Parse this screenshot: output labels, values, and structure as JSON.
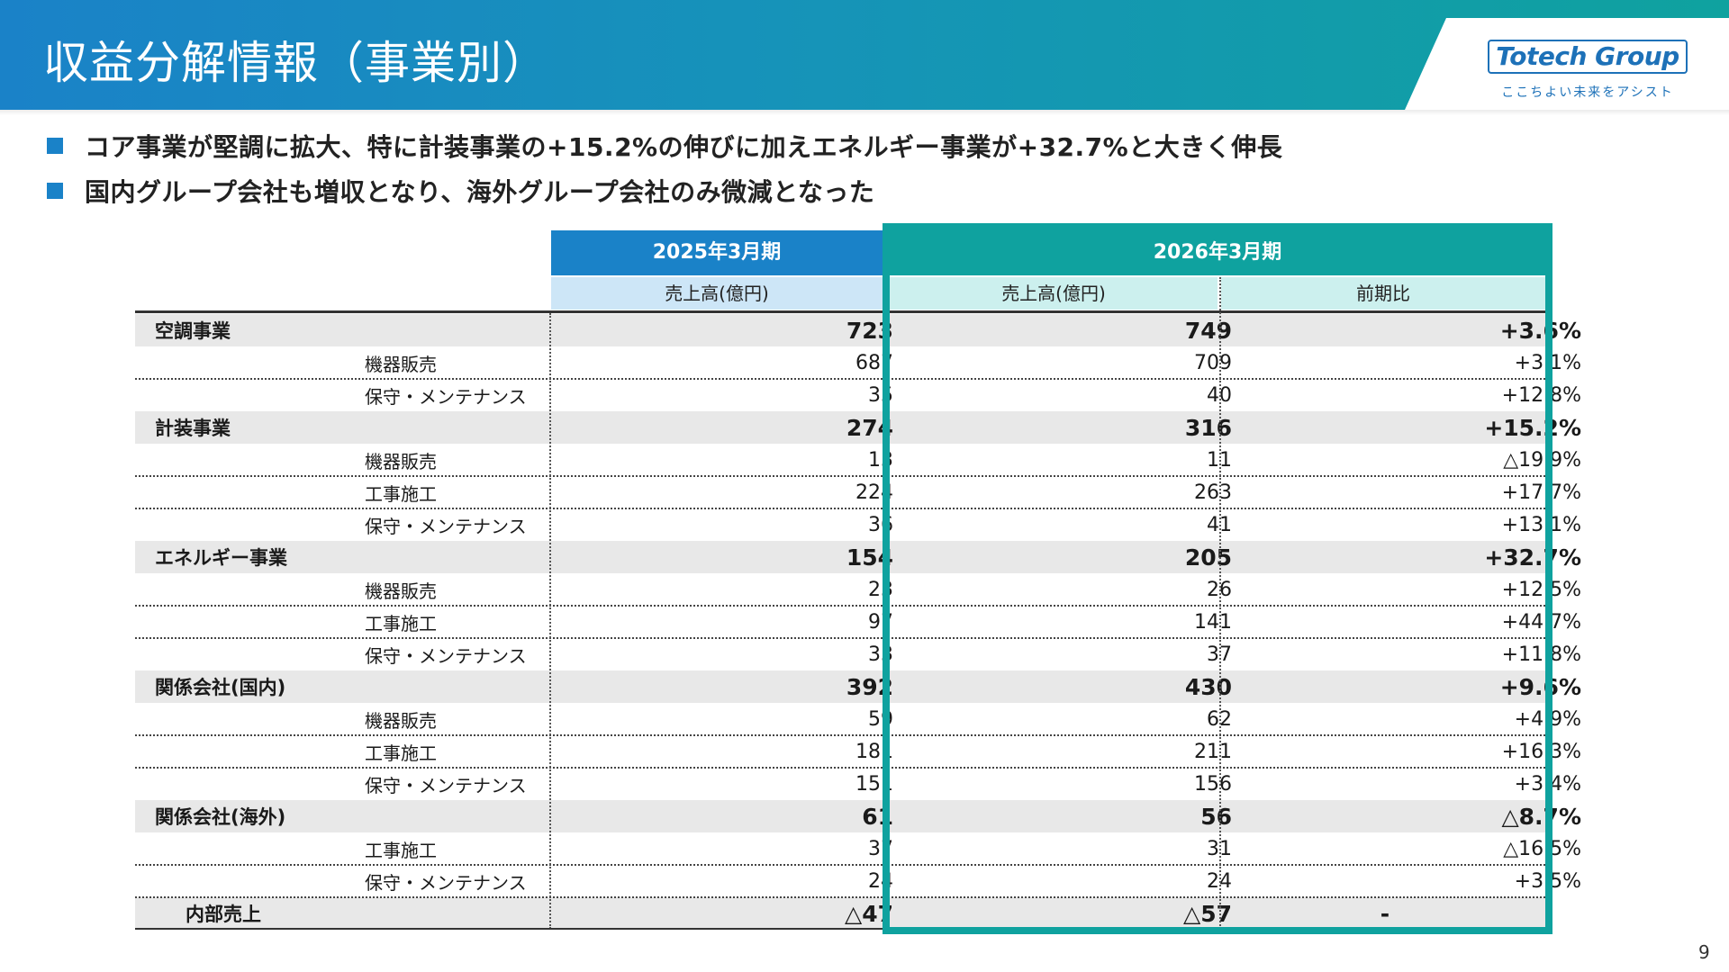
{
  "header": {
    "title": "収益分解情報（事業別）",
    "logo_text": "Totech Group",
    "logo_tagline": "ここちよい未来をアシスト"
  },
  "bullets": [
    "コア事業が堅調に拡大、特に計装事業の+15.2%の伸びに加えエネルギー事業が+32.7%と大きく伸長",
    "国内グループ会社も増収となり、海外グループ会社のみ微減となった"
  ],
  "table": {
    "period_prev": "2025年3月期",
    "period_curr": "2026年3月期",
    "col_sales_prev": "売上高(億円)",
    "col_sales_curr": "売上高(億円)",
    "col_yoy": "前期比",
    "rows": [
      {
        "label": "空調事業",
        "prev": "723",
        "curr": "749",
        "yoy": "+3.6%"
      },
      {
        "label": "機器販売",
        "prev": "687",
        "curr": "709",
        "yoy": "+3.1%"
      },
      {
        "label": "保守・メンテナンス",
        "prev": "35",
        "curr": "40",
        "yoy": "+12.8%"
      },
      {
        "label": "計装事業",
        "prev": "274",
        "curr": "316",
        "yoy": "+15.2%"
      },
      {
        "label": "機器販売",
        "prev": "13",
        "curr": "11",
        "yoy": "△19.9%"
      },
      {
        "label": "工事施工",
        "prev": "224",
        "curr": "263",
        "yoy": "+17.7%"
      },
      {
        "label": "保守・メンテナンス",
        "prev": "36",
        "curr": "41",
        "yoy": "+13.1%"
      },
      {
        "label": "エネルギー事業",
        "prev": "154",
        "curr": "205",
        "yoy": "+32.7%"
      },
      {
        "label": "機器販売",
        "prev": "23",
        "curr": "26",
        "yoy": "+12.5%"
      },
      {
        "label": "工事施工",
        "prev": "97",
        "curr": "141",
        "yoy": "+44.7%"
      },
      {
        "label": "保守・メンテナンス",
        "prev": "33",
        "curr": "37",
        "yoy": "+11.8%"
      },
      {
        "label": "関係会社(国内)",
        "prev": "392",
        "curr": "430",
        "yoy": "+9.6%"
      },
      {
        "label": "機器販売",
        "prev": "59",
        "curr": "62",
        "yoy": "+4.9%"
      },
      {
        "label": "工事施工",
        "prev": "181",
        "curr": "211",
        "yoy": "+16.3%"
      },
      {
        "label": "保守・メンテナンス",
        "prev": "151",
        "curr": "156",
        "yoy": "+3.4%"
      },
      {
        "label": "関係会社(海外)",
        "prev": "61",
        "curr": "56",
        "yoy": "△8.7%"
      },
      {
        "label": "工事施工",
        "prev": "37",
        "curr": "31",
        "yoy": "△16.5%"
      },
      {
        "label": "保守・メンテナンス",
        "prev": "24",
        "curr": "24",
        "yoy": "+3.5%"
      },
      {
        "label": "内部売上",
        "prev": "△47",
        "curr": "△57",
        "yoy": "-"
      }
    ]
  },
  "colors": {
    "header_blue": "#1a82c8",
    "header_teal": "#0fa29f",
    "subheader_blue": "#cde6f7",
    "subheader_teal": "#ccf0ee",
    "major_row_bg": "#e8e8e8"
  },
  "page_number": "9"
}
